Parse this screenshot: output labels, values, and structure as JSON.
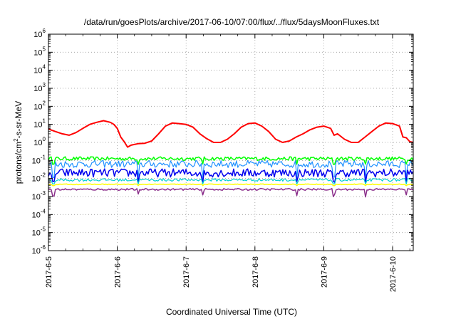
{
  "chart_data": {
    "type": "line",
    "title": "/data/run/goesPlots/archive/2017-06-10/07:00/flux/../flux/5daysMoonFluxes.txt",
    "xlabel": "Coordinated Universal Time (UTC)",
    "ylabel": {
      "prefix": "protons/cm",
      "sup": "2",
      "suffix": "-s-sr-MeV"
    },
    "y_scale": "log",
    "ylim_exponents": [
      -6,
      6
    ],
    "y_tick_labels": [
      {
        "base": "10",
        "exp": "6"
      },
      {
        "base": "10",
        "exp": "5"
      },
      {
        "base": "10",
        "exp": "4"
      },
      {
        "base": "10",
        "exp": "3"
      },
      {
        "base": "10",
        "exp": "2"
      },
      {
        "base": "10",
        "exp": "1"
      },
      {
        "base": "10",
        "exp": "0"
      },
      {
        "base": "10",
        "exp": "-1"
      },
      {
        "base": "10",
        "exp": "-2"
      },
      {
        "base": "10",
        "exp": "-3"
      },
      {
        "base": "10",
        "exp": "-4"
      },
      {
        "base": "10",
        "exp": "-5"
      },
      {
        "base": "10",
        "exp": "-6"
      }
    ],
    "x_tick_labels": [
      "2017-6-5",
      "2017-6-6",
      "2017-6-7",
      "2017-6-8",
      "2017-6-9",
      "2017-6-10"
    ],
    "xlim_days": [
      0,
      5.3
    ],
    "grid": true,
    "series": [
      {
        "color": "#ff0000",
        "width": 2,
        "points": [
          [
            0.0,
            5.5
          ],
          [
            0.1,
            4.0
          ],
          [
            0.2,
            3.0
          ],
          [
            0.3,
            2.5
          ],
          [
            0.4,
            3.5
          ],
          [
            0.5,
            6
          ],
          [
            0.6,
            10
          ],
          [
            0.7,
            13
          ],
          [
            0.8,
            16
          ],
          [
            0.9,
            13
          ],
          [
            0.95,
            10
          ],
          [
            1.0,
            6
          ],
          [
            1.05,
            2
          ],
          [
            1.1,
            1.1
          ],
          [
            1.15,
            0.55
          ],
          [
            1.2,
            0.7
          ],
          [
            1.3,
            0.85
          ],
          [
            1.4,
            0.9
          ],
          [
            1.5,
            1.2
          ],
          [
            1.6,
            3
          ],
          [
            1.7,
            8
          ],
          [
            1.8,
            12
          ],
          [
            1.9,
            11
          ],
          [
            2.0,
            10
          ],
          [
            2.1,
            7
          ],
          [
            2.2,
            3
          ],
          [
            2.3,
            1.6
          ],
          [
            2.4,
            1.0
          ],
          [
            2.5,
            1.0
          ],
          [
            2.6,
            1.5
          ],
          [
            2.7,
            3
          ],
          [
            2.8,
            7
          ],
          [
            2.9,
            11
          ],
          [
            3.0,
            12
          ],
          [
            3.1,
            8
          ],
          [
            3.2,
            4
          ],
          [
            3.3,
            1.5
          ],
          [
            3.4,
            1.0
          ],
          [
            3.5,
            1.2
          ],
          [
            3.6,
            2
          ],
          [
            3.7,
            3
          ],
          [
            3.8,
            5
          ],
          [
            3.9,
            7
          ],
          [
            4.0,
            8
          ],
          [
            4.1,
            6
          ],
          [
            4.15,
            2.5
          ],
          [
            4.2,
            3
          ],
          [
            4.3,
            1.5
          ],
          [
            4.4,
            1.0
          ],
          [
            4.5,
            1.0
          ],
          [
            4.6,
            2
          ],
          [
            4.7,
            4
          ],
          [
            4.8,
            8
          ],
          [
            4.9,
            12
          ],
          [
            5.0,
            11
          ],
          [
            5.1,
            8
          ],
          [
            5.15,
            2
          ],
          [
            5.2,
            1.8
          ],
          [
            5.25,
            1.1
          ],
          [
            5.3,
            1.0
          ]
        ]
      },
      {
        "color": "#00ff00",
        "width": 1.5,
        "band": [
          0.1,
          0.16
        ],
        "dips": [
          0.06,
          0.065
        ]
      },
      {
        "color": "#1e90ff",
        "width": 1.2,
        "band": [
          0.04,
          0.1
        ],
        "dips": [
          0.01,
          0.012
        ]
      },
      {
        "color": "#0000ee",
        "width": 1.5,
        "band": [
          0.012,
          0.035
        ],
        "dips": [
          0.006,
          0.007
        ]
      },
      {
        "color": "#00ced1",
        "width": 1.2,
        "band": [
          0.007,
          0.01
        ],
        "dips": [
          0.005,
          0.005
        ]
      },
      {
        "color": "#ffff00",
        "width": 1.5,
        "band": [
          0.0045,
          0.005
        ],
        "dips": [
          0.004,
          0.004
        ]
      },
      {
        "color": "#8b2f8b",
        "width": 1.5,
        "band": [
          0.0022,
          0.0028
        ],
        "dips": [
          0.0009,
          0.0014
        ]
      }
    ]
  }
}
